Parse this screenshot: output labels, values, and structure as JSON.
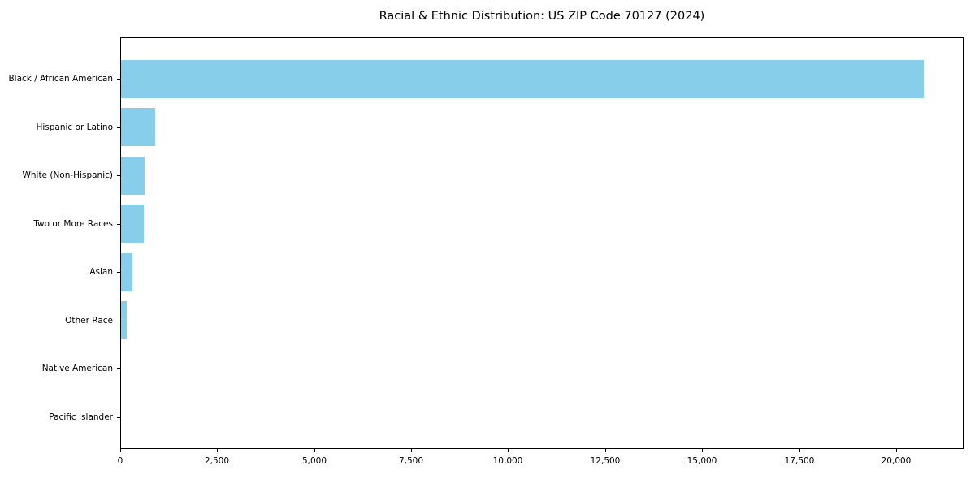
{
  "title": "Racial & Ethnic Distribution: US ZIP Code 70127 (2024)",
  "colors": {
    "bar": "#87CEEB",
    "axis": "#000000",
    "text": "#000000",
    "background": "#ffffff"
  },
  "chart_data": {
    "type": "bar",
    "orientation": "horizontal",
    "title": "Racial & Ethnic Distribution: US ZIP Code 70127 (2024)",
    "xlabel": "",
    "ylabel": "",
    "categories": [
      "Black / African American",
      "Hispanic or Latino",
      "White (Non-Hispanic)",
      "Two or More Races",
      "Asian",
      "Other Race",
      "Native American",
      "Pacific Islander"
    ],
    "values": [
      20700,
      870,
      600,
      580,
      285,
      140,
      0,
      0
    ],
    "xlim": [
      0,
      21740
    ],
    "xticks": [
      0,
      2500,
      5000,
      7500,
      10000,
      12500,
      15000,
      17500,
      20000
    ],
    "xtick_labels": [
      "0",
      "2,500",
      "5,000",
      "7,500",
      "10,000",
      "12,500",
      "15,000",
      "17,500",
      "20,000"
    ],
    "grid": false,
    "legend": null,
    "bar_color": "#87CEEB"
  }
}
